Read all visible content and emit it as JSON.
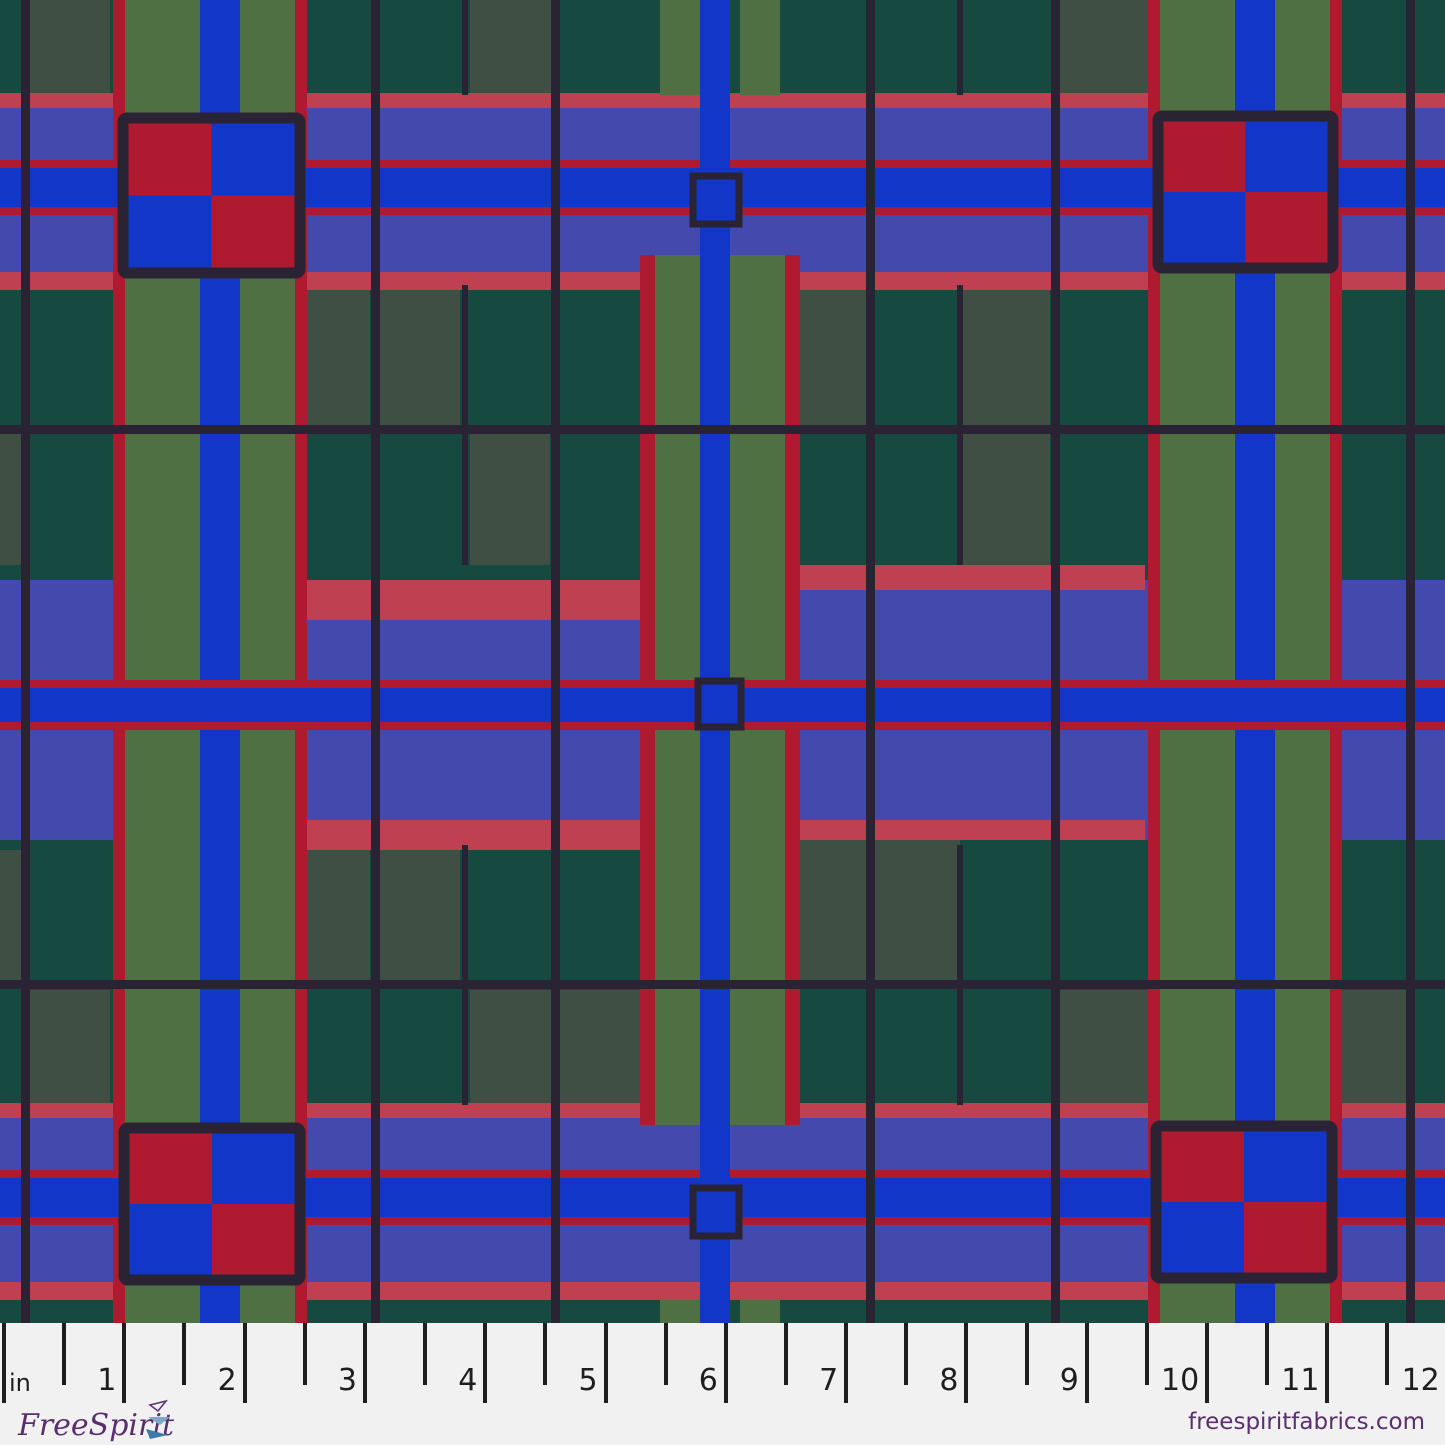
{
  "swatch": {
    "colors": {
      "dark_green": "#164a40",
      "grey_green": "#404f43",
      "leaf_green": "#4e7043",
      "royal_blue": "#1236c8",
      "violet": "#4349ad",
      "rose": "#bf4050",
      "red": "#b01a30",
      "outline": "#2a2333"
    }
  },
  "ruler": {
    "unit": "in",
    "numbers": [
      "1",
      "2",
      "3",
      "4",
      "5",
      "6",
      "7",
      "8",
      "9",
      "10",
      "11",
      "12"
    ]
  },
  "brand": {
    "logo_text": "FreeSpirit",
    "website": "freespiritfabrics.com"
  }
}
